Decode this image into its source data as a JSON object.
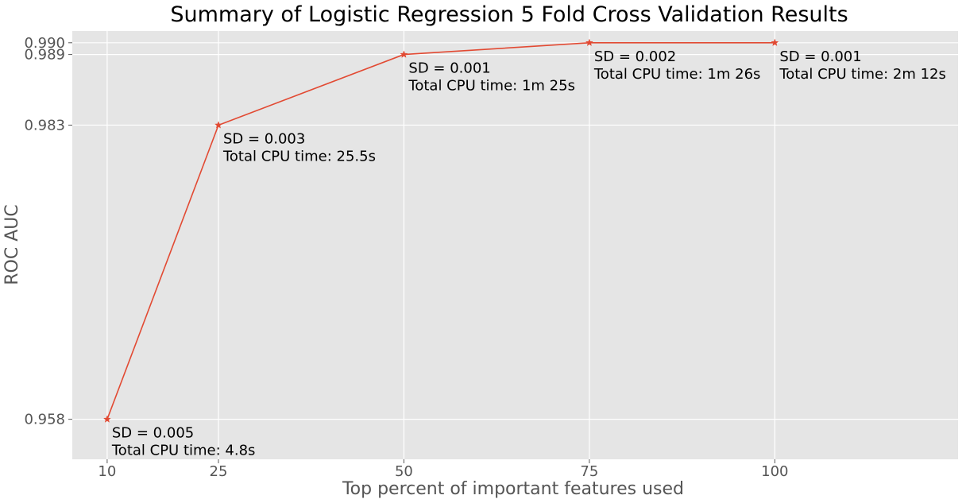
{
  "chart_data": {
    "type": "line",
    "title": "Summary of Logistic Regression 5 Fold Cross Validation Results",
    "xlabel": "Top percent of important features used",
    "ylabel": "ROC AUC",
    "x": [
      10,
      25,
      50,
      75,
      100
    ],
    "xticks": [
      "10",
      "25",
      "50",
      "75",
      "100"
    ],
    "yticks": [
      "0.958",
      "0.983",
      "0.989",
      "0.990"
    ],
    "ytick_values": [
      0.958,
      0.983,
      0.989,
      0.99
    ],
    "xlim": [
      5.3,
      124.7
    ],
    "ylim": [
      0.9546,
      0.991
    ],
    "grid": true,
    "series": [
      {
        "values": [
          0.958,
          0.983,
          0.989,
          0.99,
          0.99
        ],
        "color": "#E24A33",
        "marker": "star"
      }
    ],
    "annotations": [
      {
        "sd": "SD = 0.005",
        "cpu": "Total CPU time: 4.8s"
      },
      {
        "sd": "SD = 0.003",
        "cpu": "Total CPU time: 25.5s"
      },
      {
        "sd": "SD = 0.001",
        "cpu": "Total CPU time: 1m 25s"
      },
      {
        "sd": "SD = 0.002",
        "cpu": "Total CPU time: 1m 26s"
      },
      {
        "sd": "SD = 0.001",
        "cpu": "Total CPU time: 2m 12s"
      }
    ],
    "colors": {
      "plot_background": "#E5E5E5",
      "grid": "#FFFFFF",
      "line": "#E24A33"
    }
  }
}
